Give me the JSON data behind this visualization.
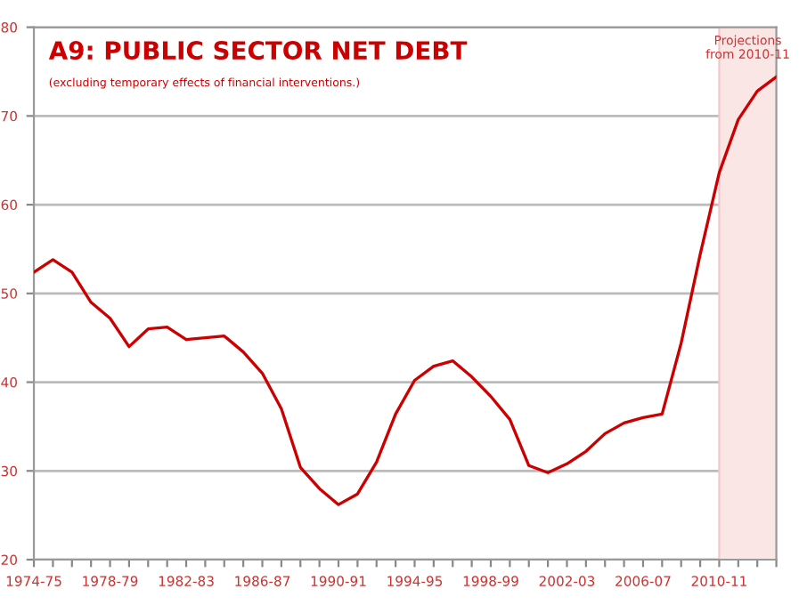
{
  "chart_data": {
    "type": "line",
    "title": "A9: PUBLIC SECTOR NET DEBT",
    "subtitle": "(excluding temporary effects of financial interventions.)",
    "categories": [
      "1974-75",
      null,
      null,
      null,
      "1978-79",
      null,
      null,
      null,
      "1982-83",
      null,
      null,
      null,
      "1986-87",
      null,
      null,
      null,
      "1990-91",
      null,
      null,
      null,
      "1994-95",
      null,
      null,
      null,
      "1998-99",
      null,
      null,
      null,
      "2002-03",
      null,
      null,
      null,
      "2006-07",
      null,
      null,
      null,
      "2010-11",
      null,
      null,
      null
    ],
    "series": [
      {
        "color": "#cc0000",
        "values": [
          52.4,
          53.8,
          52.4,
          49,
          47.2,
          44,
          46,
          46.2,
          44.8,
          45,
          45.2,
          43.4,
          41,
          37,
          30.4,
          28,
          26.2,
          27.4,
          31,
          36.4,
          40.2,
          41.8,
          42.4,
          40.6,
          38.4,
          35.8,
          30.6,
          29.8,
          30.8,
          32.2,
          34.2,
          35.4,
          36,
          36.4,
          44.4,
          54.4,
          63.6,
          69.6,
          72.8,
          74.4
        ]
      }
    ],
    "ylim": [
      20,
      80
    ],
    "yticks": [
      20,
      30,
      40,
      50,
      60,
      70,
      80
    ],
    "grid": "y",
    "annotations": [
      "Projections\nfrom 2010-11"
    ]
  }
}
